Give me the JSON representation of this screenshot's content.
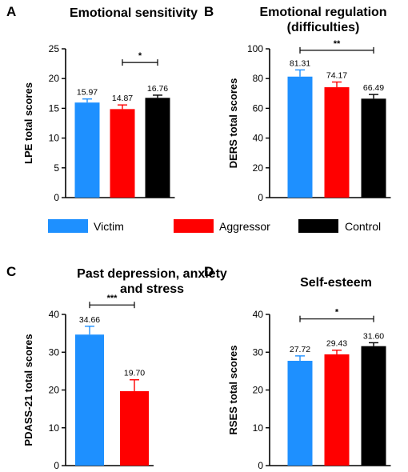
{
  "legend": {
    "items": [
      {
        "label": "Victim",
        "color": "#1e90ff"
      },
      {
        "label": "Aggressor",
        "color": "#ff0000"
      },
      {
        "label": "Control",
        "color": "#000000"
      }
    ]
  },
  "chart_data": [
    {
      "type": "bar",
      "panel": "A",
      "title_lines": [
        "Emotional sensitivity"
      ],
      "ylabel": "LPE total scores",
      "ylim": [
        0,
        25
      ],
      "yticks": [
        0,
        5,
        10,
        15,
        20,
        25
      ],
      "categories": [
        "Victim",
        "Aggressor",
        "Control"
      ],
      "values": [
        15.97,
        14.87,
        16.76
      ],
      "value_labels": [
        "15.97",
        "14.87",
        "16.76"
      ],
      "errors": [
        0.6,
        0.7,
        0.45
      ],
      "colors": [
        "#1e90ff",
        "#ff0000",
        "#000000"
      ],
      "significance": [
        {
          "from": 1,
          "to": 2,
          "label": "*",
          "y": 22.7
        }
      ]
    },
    {
      "type": "bar",
      "panel": "B",
      "title_lines": [
        "Emotional regulation",
        "(difficulties)"
      ],
      "ylabel": "DERS total scores",
      "ylim": [
        0,
        100
      ],
      "yticks": [
        0,
        20,
        40,
        60,
        80,
        100
      ],
      "categories": [
        "Victim",
        "Aggressor",
        "Control"
      ],
      "values": [
        81.31,
        74.17,
        66.49
      ],
      "value_labels": [
        "81.31",
        "74.17",
        "66.49"
      ],
      "errors": [
        4.5,
        3.5,
        2.8
      ],
      "colors": [
        "#1e90ff",
        "#ff0000",
        "#000000"
      ],
      "significance": [
        {
          "from": 0,
          "to": 2,
          "label": "**",
          "y": 99
        }
      ]
    },
    {
      "type": "bar",
      "panel": "C",
      "title_lines": [
        "Past depression, anxiety",
        "and stress"
      ],
      "ylabel": "PDASS-21 total scores",
      "ylim": [
        0,
        40
      ],
      "yticks": [
        0,
        10,
        20,
        30,
        40
      ],
      "categories": [
        "Victim",
        "Aggressor"
      ],
      "values": [
        34.66,
        19.7
      ],
      "value_labels": [
        "34.66",
        "19.70"
      ],
      "errors": [
        2.2,
        3.0
      ],
      "colors": [
        "#1e90ff",
        "#ff0000"
      ],
      "significance": [
        {
          "from": 0,
          "to": 1,
          "label": "***",
          "y": 42.5
        }
      ]
    },
    {
      "type": "bar",
      "panel": "D",
      "title_lines": [
        "Self-esteem"
      ],
      "ylabel": "RSES total scores",
      "ylim": [
        0,
        40
      ],
      "yticks": [
        0,
        10,
        20,
        30,
        40
      ],
      "categories": [
        "Victim",
        "Aggressor",
        "Control"
      ],
      "values": [
        27.72,
        29.43,
        31.6
      ],
      "value_labels": [
        "27.72",
        "29.43",
        "31.60"
      ],
      "errors": [
        1.3,
        1.1,
        0.9
      ],
      "colors": [
        "#1e90ff",
        "#ff0000",
        "#000000"
      ],
      "significance": [
        {
          "from": 0,
          "to": 2,
          "label": "*",
          "y": 38.8
        }
      ]
    }
  ]
}
